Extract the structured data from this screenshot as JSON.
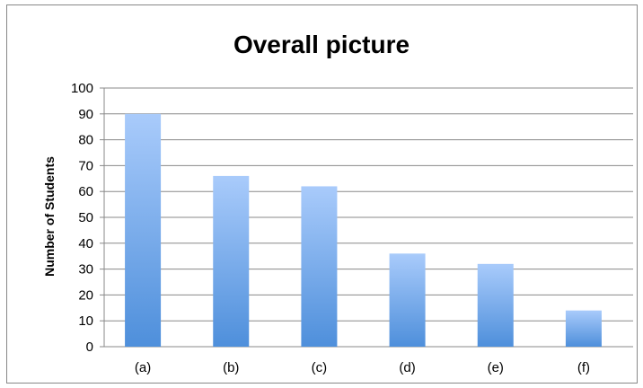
{
  "chart_data": {
    "type": "bar",
    "title": "Overall picture",
    "xlabel": "",
    "ylabel": "Number of Students",
    "categories": [
      "(a)",
      "(b)",
      "(c)",
      "(d)",
      "(e)",
      "(f)"
    ],
    "values": [
      90,
      66,
      62,
      36,
      32,
      14
    ],
    "ylim": [
      0,
      100
    ],
    "yticks": [
      0,
      10,
      20,
      30,
      40,
      50,
      60,
      70,
      80,
      90,
      100
    ],
    "grid": true,
    "legend": "none",
    "colors": {
      "bar_top": "#a9cbfb",
      "bar_bottom": "#4e8fdb",
      "grid": "#888888"
    }
  }
}
